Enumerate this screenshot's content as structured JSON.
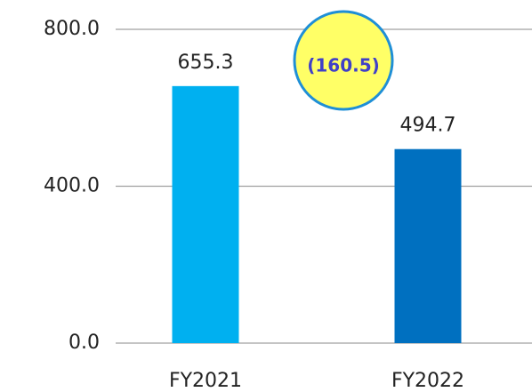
{
  "chart_data": {
    "type": "bar",
    "categories": [
      "FY2021",
      "FY2022"
    ],
    "values": [
      655.3,
      494.7
    ],
    "colors": [
      "#00b0f0",
      "#0070c0"
    ],
    "ylim": [
      0,
      800
    ],
    "yticks": [
      {
        "value": 0,
        "label": "0.0"
      },
      {
        "value": 400,
        "label": "400.0"
      },
      {
        "value": 800,
        "label": "800.0"
      }
    ],
    "grid": true,
    "annotation": "(160.5)"
  }
}
